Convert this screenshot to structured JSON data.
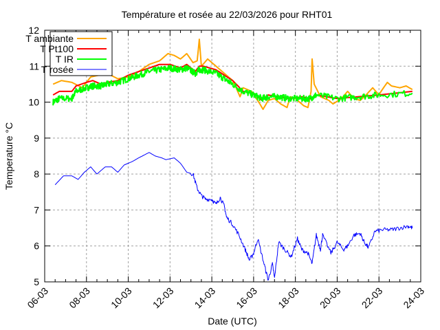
{
  "chart_data": {
    "type": "line",
    "title": "Température et rosée au 22/03/2026 pour RHT01",
    "xlabel": "Date (UTC)",
    "ylabel": "Temperature °C",
    "xlim": [
      6,
      24
    ],
    "ylim": [
      5,
      12
    ],
    "grid": true,
    "legend_position": "top-left",
    "x_ticks": [
      {
        "v": 6,
        "label": "06-03"
      },
      {
        "v": 8,
        "label": "08-03"
      },
      {
        "v": 10,
        "label": "10-03"
      },
      {
        "v": 12,
        "label": "12-03"
      },
      {
        "v": 14,
        "label": "14-03"
      },
      {
        "v": 16,
        "label": "16-03"
      },
      {
        "v": 18,
        "label": "18-03"
      },
      {
        "v": 20,
        "label": "20-03"
      },
      {
        "v": 22,
        "label": "22-03"
      },
      {
        "v": 24,
        "label": "24-03"
      }
    ],
    "y_ticks": [
      {
        "v": 5,
        "label": "5"
      },
      {
        "v": 6,
        "label": "6"
      },
      {
        "v": 7,
        "label": "7"
      },
      {
        "v": 8,
        "label": "8"
      },
      {
        "v": 9,
        "label": "9"
      },
      {
        "v": 10,
        "label": "10"
      },
      {
        "v": 11,
        "label": "11"
      },
      {
        "v": 12,
        "label": "12"
      }
    ],
    "series": [
      {
        "name": "T ambiante",
        "color": "#ffa500",
        "width": 2,
        "x": [
          6.4,
          6.8,
          7.3,
          7.8,
          8.2,
          8.6,
          9.0,
          9.5,
          10.0,
          10.5,
          11.0,
          11.5,
          11.9,
          12.2,
          12.5,
          12.8,
          13.1,
          13.3,
          13.4,
          13.5,
          13.8,
          14.2,
          14.6,
          15.0,
          15.2,
          15.35,
          15.5,
          15.9,
          16.3,
          16.45,
          16.7,
          17.0,
          17.3,
          17.6,
          17.75,
          18.0,
          18.4,
          18.6,
          18.75,
          18.8,
          18.9,
          19.2,
          19.6,
          19.8,
          20.2,
          20.5,
          20.8,
          21.1,
          21.3,
          21.7,
          22.0,
          22.1,
          22.4,
          22.6,
          23.0,
          23.3,
          23.6
        ],
        "y": [
          10.5,
          10.6,
          10.55,
          10.4,
          10.7,
          10.75,
          10.8,
          10.65,
          10.7,
          10.85,
          11.05,
          11.15,
          11.35,
          11.3,
          11.2,
          11.35,
          11.1,
          11.15,
          11.75,
          11.0,
          11.2,
          11.0,
          10.8,
          10.6,
          10.35,
          10.15,
          10.4,
          10.3,
          9.95,
          9.8,
          10.05,
          10.1,
          9.95,
          9.85,
          10.15,
          10.1,
          9.9,
          9.85,
          10.3,
          11.2,
          10.5,
          10.15,
          10.05,
          9.95,
          10.1,
          10.3,
          10.1,
          10.05,
          10.15,
          10.4,
          10.2,
          10.3,
          10.55,
          10.45,
          10.4,
          10.45,
          10.35
        ]
      },
      {
        "name": "T Pt100",
        "color": "#ff0000",
        "width": 2,
        "x": [
          6.4,
          6.7,
          7.3,
          7.5,
          8.0,
          8.3,
          8.7,
          9.0,
          9.5,
          10.0,
          10.5,
          11.0,
          11.5,
          12.0,
          12.5,
          12.8,
          13.2,
          13.4,
          13.6,
          14.2,
          14.6,
          15.0,
          15.5,
          16.0,
          16.4,
          16.7,
          17.2,
          17.7,
          18.3,
          18.7,
          19.0,
          20.0,
          21.0,
          22.0,
          23.6
        ],
        "y": [
          10.2,
          10.3,
          10.3,
          10.45,
          10.55,
          10.6,
          10.5,
          10.55,
          10.6,
          10.75,
          10.85,
          10.95,
          11.05,
          11.05,
          10.95,
          11.05,
          10.85,
          11.0,
          11.0,
          10.9,
          10.75,
          10.6,
          10.3,
          10.25,
          10.05,
          10.2,
          10.15,
          10.1,
          10.15,
          10.1,
          10.2,
          10.1,
          10.15,
          10.2,
          10.3
        ]
      },
      {
        "name": "T IR",
        "color": "#00ff00",
        "width": 2,
        "x": [
          6.4,
          6.7,
          7.3,
          7.5,
          8.0,
          8.3,
          8.7,
          9.0,
          9.5,
          10.0,
          10.5,
          11.0,
          11.5,
          12.0,
          12.5,
          12.8,
          13.2,
          13.4,
          13.6,
          14.2,
          14.6,
          15.0,
          15.5,
          16.0,
          16.4,
          16.7,
          17.2,
          17.7,
          18.3,
          18.7,
          19.0,
          20.0,
          21.0,
          22.0,
          23.6
        ],
        "y": [
          10.0,
          10.1,
          10.1,
          10.3,
          10.4,
          10.45,
          10.45,
          10.5,
          10.55,
          10.65,
          10.75,
          10.85,
          10.9,
          10.95,
          10.9,
          10.95,
          10.8,
          10.9,
          10.9,
          10.8,
          10.65,
          10.5,
          10.3,
          10.2,
          10.1,
          10.15,
          10.15,
          10.1,
          10.1,
          10.1,
          10.2,
          10.1,
          10.15,
          10.2,
          10.25
        ]
      },
      {
        "name": "T rosée",
        "color": "#0000ff",
        "width": 1,
        "x": [
          6.5,
          6.9,
          7.3,
          7.6,
          7.9,
          8.2,
          8.5,
          8.9,
          9.2,
          9.5,
          9.8,
          10.2,
          10.5,
          11.0,
          11.3,
          11.6,
          11.8,
          12.2,
          12.5,
          12.8,
          13.1,
          13.3,
          13.5,
          13.7,
          14.0,
          14.2,
          14.4,
          14.6,
          14.7,
          15.0,
          15.3,
          15.6,
          15.8,
          16.0,
          16.2,
          16.5,
          16.7,
          16.9,
          17.0,
          17.2,
          17.5,
          17.8,
          18.1,
          18.3,
          18.6,
          18.8,
          19.0,
          19.2,
          19.3,
          19.7,
          20.0,
          20.3,
          20.5,
          20.8,
          21.1,
          21.3,
          21.5,
          21.8,
          22.2,
          22.6,
          23.0,
          23.4,
          23.6
        ],
        "y": [
          7.7,
          7.95,
          7.95,
          7.85,
          8.05,
          8.2,
          8.0,
          8.2,
          8.2,
          8.05,
          8.25,
          8.35,
          8.45,
          8.6,
          8.5,
          8.45,
          8.4,
          8.45,
          8.3,
          8.05,
          8.0,
          7.6,
          7.4,
          7.3,
          7.3,
          7.15,
          7.35,
          7.1,
          6.8,
          6.6,
          6.3,
          5.9,
          5.6,
          5.8,
          6.2,
          5.5,
          5.05,
          5.5,
          5.1,
          6.1,
          5.9,
          5.7,
          6.2,
          5.9,
          5.8,
          5.5,
          6.3,
          5.9,
          6.3,
          5.8,
          6.1,
          5.9,
          6.0,
          6.3,
          6.35,
          6.1,
          5.95,
          6.4,
          6.45,
          6.45,
          6.5,
          6.55,
          6.5
        ]
      }
    ]
  }
}
